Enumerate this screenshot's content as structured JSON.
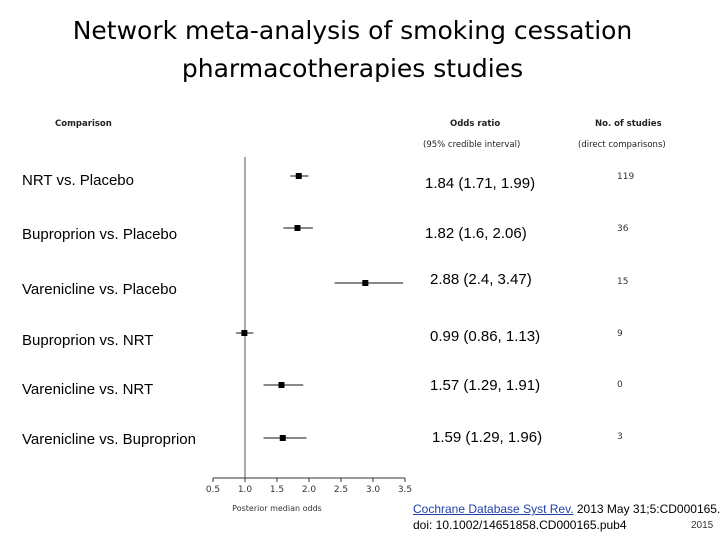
{
  "title_line1": "Network meta-analysis of smoking cessation",
  "title_line2": "pharmacotherapies studies",
  "headers": {
    "comparison": "Comparison",
    "odds_ratio": "Odds ratio",
    "credible_interval": "(95% credible interval)",
    "no_studies": "No. of studies",
    "direct_comparisons": "(direct comparisons)"
  },
  "rows": [
    {
      "label": "NRT vs. Placebo",
      "or_text": "1.84 (1.71, 1.99)",
      "studies": "119"
    },
    {
      "label": "Buproprion vs. Placebo",
      "or_text": "1.82 (1.6, 2.06)",
      "studies": "36"
    },
    {
      "label": "Varenicline vs. Placebo",
      "or_text": "2.88 (2.4, 3.47)",
      "studies": "15"
    },
    {
      "label": "Buproprion vs. NRT",
      "or_text": "0.99 (0.86, 1.13)",
      "studies": "9"
    },
    {
      "label": "Varenicline vs. NRT",
      "or_text": "1.57 (1.29, 1.91)",
      "studies": "0"
    },
    {
      "label": "Varenicline vs. Buproprion",
      "or_text": "1.59 (1.29, 1.96)",
      "studies": "3"
    }
  ],
  "chart_data": {
    "type": "forest",
    "xlabel": "Posterior median odds",
    "xlim": [
      0.5,
      3.5
    ],
    "xticks": [
      0.5,
      1.0,
      1.5,
      2.0,
      2.5,
      3.0,
      3.5
    ],
    "xtick_labels": [
      "0.5",
      "1.0",
      "1.5",
      "2.0",
      "2.5",
      "3.0",
      "3.5"
    ],
    "reference_line": 1.0,
    "estimates": [
      {
        "comparison": "NRT vs. Placebo",
        "median": 1.84,
        "lower": 1.71,
        "upper": 1.99
      },
      {
        "comparison": "Buproprion vs. Placebo",
        "median": 1.82,
        "lower": 1.6,
        "upper": 2.06
      },
      {
        "comparison": "Varenicline vs. Placebo",
        "median": 2.88,
        "lower": 2.4,
        "upper": 3.47
      },
      {
        "comparison": "Buproprion vs. NRT",
        "median": 0.99,
        "lower": 0.86,
        "upper": 1.13
      },
      {
        "comparison": "Varenicline vs. NRT",
        "median": 1.57,
        "lower": 1.29,
        "upper": 1.91
      },
      {
        "comparison": "Varenicline vs. Buproprion",
        "median": 1.59,
        "lower": 1.29,
        "upper": 1.96
      }
    ]
  },
  "citation": {
    "link_text": "Cochrane Database Syst Rev.",
    "ref_text": " 2013 May 31;5:CD000165.",
    "doi": "doi: 10.1002/14651858.CD000165.pub4"
  },
  "page_number": "2015"
}
